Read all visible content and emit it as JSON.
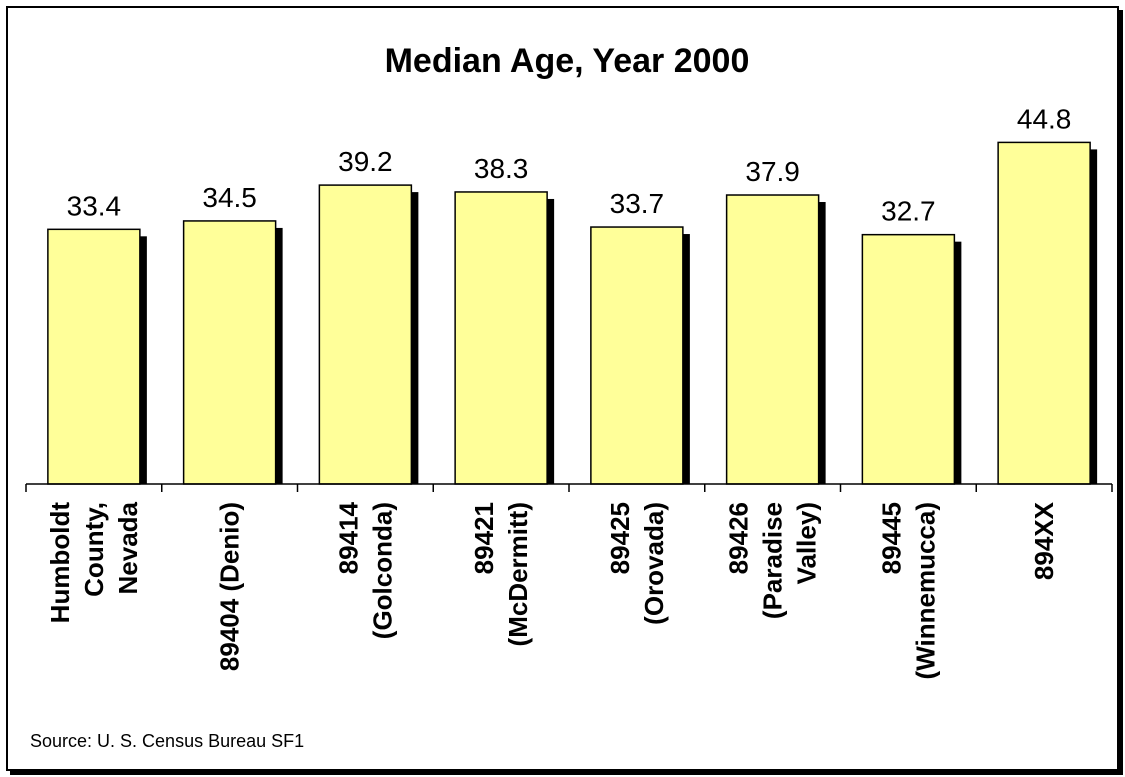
{
  "chart_data": {
    "type": "bar",
    "title": "Median Age, Year 2000",
    "categories": [
      [
        "Humboldt",
        "County,",
        "Nevada"
      ],
      [
        "89404 (Denio)"
      ],
      [
        "89414",
        "(Golconda)"
      ],
      [
        "89421",
        "(McDermitt)"
      ],
      [
        "89425",
        "(Orovada)"
      ],
      [
        "89426",
        "(Paradise",
        "Valley)"
      ],
      [
        "89445",
        "(Winnemucca)"
      ],
      [
        "894XX"
      ]
    ],
    "values": [
      33.4,
      34.5,
      39.2,
      38.3,
      33.7,
      37.9,
      32.7,
      44.8
    ],
    "value_labels": [
      "33.4",
      "34.5",
      "39.2",
      "38.3",
      "33.7",
      "37.9",
      "32.7",
      "44.8"
    ],
    "ylim": [
      0,
      50
    ],
    "grid": false,
    "legend": "none",
    "xlabel": "",
    "ylabel": "",
    "source": "Source: U. S. Census Bureau SF1",
    "colors": {
      "bar": "#FFFF99",
      "bar_outline": "#000000",
      "shadow": "#000000"
    }
  }
}
